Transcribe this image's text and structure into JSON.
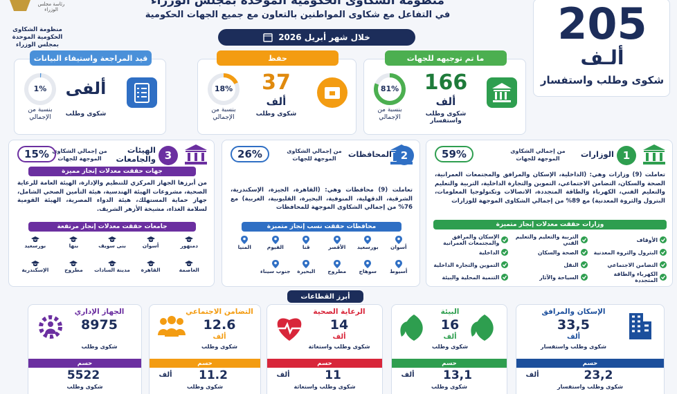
{
  "header": {
    "title": "منظومة الشكاوى الحكومية الموحدة بمجلس الوزراء",
    "subtitle": "في التفاعل مع شكاوى المواطنين بالتعاون مع جميع الجهات الحكومية",
    "period": "خلال شهر أبريل 2026",
    "logo_caption": "رئاسة مجلس الوزراء",
    "logo_text": "منظومة الشكاوى الحكومية الموحدة بمجلس الوزراء"
  },
  "total": {
    "value": "205",
    "unit": "ألـف",
    "label": "شكوى وطلب واستفسار"
  },
  "stats": [
    {
      "title": "ما تم توجيهه للجهات",
      "value": "166",
      "unit": "ألف",
      "label": "شكوى وطلب واستفسار",
      "share": {
        "value": 81,
        "label": "81%"
      },
      "share_label": "بنسبة من الإجمالي"
    },
    {
      "title": "حفظ",
      "value": "37",
      "unit": "ألف",
      "label": "شكوى وطلب",
      "share": {
        "value": 18,
        "label": "18%"
      },
      "share_label": "بنسبة من الإجمالي"
    },
    {
      "title": "قيد المراجعة واستيفاء البيانات",
      "value": "ألفى",
      "label": "شكوى وطلب",
      "share": {
        "value": 1,
        "label": "1%"
      },
      "share_label": "بنسبة من الإجمالي"
    }
  ],
  "panels": [
    {
      "number": "1",
      "title": "الوزارات",
      "share_label": "من إجمالي الشكاوى الموجهة للجهات",
      "share": {
        "value": 59,
        "label": "59%"
      },
      "text": "تعاملت (9) وزارات وهي: (الداخلية، الإسكان والمرافق والمجتمعات العمرانية، الصحة والسكان، التضامن الاجتماعي، التموين والتجارة الداخلية، التربية والتعليم والتعليم الفني، الكهرباء والطاقة المتجددة، الاتصالات وتكنولوجيا المعلومات، البترول والثروة المعدنية) مع 89% من إجمالي الشكاوى الموجهة للوزارات",
      "banner": "وزارات حققت معدلات إنجاز متميزة",
      "items": [
        "الأوقاف",
        "البترول والثروة المعدنية",
        "التضامن الاجتماعي",
        "الكهرباء والطاقة المتجددة",
        "التربية والتعليم والتعليم الفني",
        "الصحة والسكان",
        "النقل",
        "السياحة والآثار",
        "الإسكان والمرافق والمجتمعات العمرانية",
        "الداخلية",
        "التموين والتجارة الداخلية",
        "التنمية المحلية والبيئة"
      ]
    },
    {
      "number": "2",
      "title": "المحافظات",
      "share_label": "من إجمالي الشكاوى الموجهة للجهات",
      "share": {
        "value": 26,
        "label": "26%"
      },
      "text": "تعاملت (9) محافظات وهي: (القاهرة، الجيزة، الإسكندرية، الشرقية، الدقهلية، المنوفية، البحيرة، القليوبية، الغربية) مع 76% من إجمالي الشكاوى الموجهة للمحافظات",
      "banner": "محافظات حققت نسب إنجاز متميزة",
      "items": [
        "أسوان",
        "بورسعيد",
        "الأقصر",
        "قنا",
        "الفيوم",
        "المنيا",
        "أسيوط",
        "سوهاج",
        "مطروح",
        "البحيرة",
        "جنوب سيناء"
      ]
    },
    {
      "number": "3",
      "title": "الهيئات والجامعات",
      "share_label": "من إجمالي الشكاوى الموجهة للجهات",
      "share": {
        "value": 15,
        "label": "15%"
      },
      "intro": "جهات حققت معدلات إنجاز مميزة",
      "text": "من أبرزها الجهاز المركزي للتنظيم والإدارة، الهيئة العامة للرعاية الصحية، مشروعات الهيئة الهندسية، هيئة التأمين الصحي الشامل، جهاز حماية المستهلك، هيئة الدواء المصرية، الهيئة القومية لسلامة الغذاء، مشيخة الأزهر الشريف.",
      "banner": "جامعات حققت معدلات إنجاز مرتفعة",
      "items": [
        "دمنهور",
        "أسوان",
        "بنى سويف",
        "بنها",
        "بورسعيد",
        "العاصمة",
        "القاهرة",
        "مدينة السادات",
        "مطروح",
        "الإسكندرية"
      ]
    }
  ],
  "sectors": {
    "title": "أبرز القطاعات",
    "items": [
      {
        "name": "الإسكان والمرافق",
        "value": "33,5",
        "unit": "ألف",
        "label": "شكوى وطلب واستفسار",
        "resolved_title": "حسم",
        "resolved_value": "23,2",
        "resolved_unit": "ألف",
        "resolved_label": "شكوى وطلب واستفسار"
      },
      {
        "name": "البيئة",
        "value": "16",
        "unit": "ألف",
        "label": "شكوى وطلب",
        "resolved_title": "حسم",
        "resolved_value": "13,1",
        "resolved_unit": "ألف",
        "resolved_label": "شكوى وطلب"
      },
      {
        "name": "الرعاية الصحية",
        "value": "14",
        "unit": "ألف",
        "label": "شكوى وطلب واستغاثة",
        "resolved_title": "حسم",
        "resolved_value": "11",
        "resolved_unit": "ألف",
        "resolved_label": "شكوى وطلب واستغاثة"
      },
      {
        "name": "التضامن الاجتماعي",
        "value": "12.6",
        "unit": "ألف",
        "label": "شكوى وطلب",
        "resolved_title": "حسم",
        "resolved_value": "11.2",
        "resolved_unit": "ألف",
        "resolved_label": "شكوى وطلب"
      },
      {
        "name": "الجهاز الإداري",
        "value": "8975",
        "label": "شكوى وطلب",
        "resolved_title": "حسم",
        "resolved_value": "5522",
        "resolved_label": "شكوى وطلب"
      }
    ]
  }
}
